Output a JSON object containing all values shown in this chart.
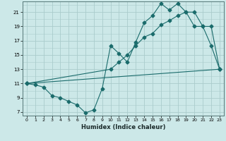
{
  "title": "",
  "xlabel": "Humidex (Indice chaleur)",
  "bg_color": "#cce8e8",
  "grid_color": "#aacccc",
  "line_color": "#1a6b6b",
  "xlim": [
    -0.5,
    23.5
  ],
  "ylim": [
    6.5,
    22.5
  ],
  "xticks": [
    0,
    1,
    2,
    3,
    4,
    5,
    6,
    7,
    8,
    9,
    10,
    11,
    12,
    13,
    14,
    15,
    16,
    17,
    18,
    19,
    20,
    21,
    22,
    23
  ],
  "yticks": [
    7,
    9,
    11,
    13,
    15,
    17,
    19,
    21
  ],
  "line1_x": [
    0,
    1,
    2,
    3,
    4,
    5,
    6,
    7,
    8,
    9,
    10,
    11,
    12,
    13,
    14,
    15,
    16,
    17,
    18,
    19,
    20,
    21,
    22,
    23
  ],
  "line1_y": [
    11.0,
    10.8,
    10.5,
    9.3,
    9.0,
    8.5,
    8.0,
    6.9,
    7.3,
    10.3,
    16.3,
    15.2,
    14.0,
    16.8,
    19.5,
    20.5,
    22.2,
    21.3,
    22.2,
    21.0,
    21.0,
    19.0,
    16.3,
    13.0
  ],
  "line2_x": [
    0,
    10,
    11,
    12,
    13,
    14,
    15,
    16,
    17,
    18,
    19,
    20,
    21,
    22,
    23
  ],
  "line2_y": [
    11.0,
    13.0,
    14.0,
    15.0,
    16.3,
    17.5,
    18.0,
    19.2,
    19.8,
    20.5,
    21.0,
    19.0,
    19.0,
    19.0,
    13.0
  ],
  "line3_x": [
    0,
    23
  ],
  "line3_y": [
    11.0,
    13.0
  ],
  "marker_size": 2.5,
  "line_width": 0.8
}
